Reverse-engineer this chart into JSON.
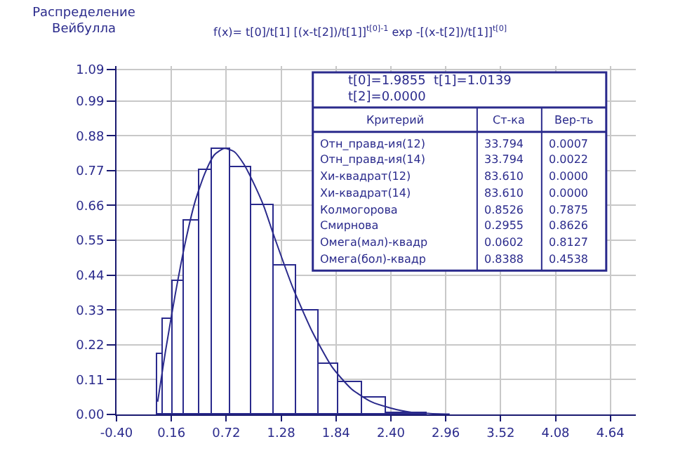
{
  "chart_data": {
    "type": "histogram",
    "title": "Распределение\nВейбулла",
    "bins": [
      0.02,
      0.07,
      0.18,
      0.29,
      0.44,
      0.58,
      0.76,
      0.98,
      1.21,
      1.44,
      1.66,
      1.86,
      2.1,
      2.35,
      2.76
    ],
    "values": [
      0.19,
      0.3,
      0.42,
      0.61,
      0.77,
      0.84,
      0.78,
      0.66,
      0.47,
      0.33,
      0.16,
      0.1,
      0.055,
      0.005
    ],
    "color": "#2a2a8c",
    "series": [
      {
        "type": "line",
        "color": "#2a2a8c",
        "x": [
          0.02,
          0.05,
          0.1,
          0.2,
          0.3,
          0.4,
          0.5,
          0.6,
          0.7,
          0.8,
          0.9,
          1.0,
          1.1,
          1.2,
          1.4,
          1.6,
          1.8,
          2.0,
          2.2,
          2.4,
          2.6,
          2.8,
          3.0
        ],
        "values": [
          0.04,
          0.1,
          0.2,
          0.38,
          0.54,
          0.67,
          0.76,
          0.82,
          0.84,
          0.83,
          0.79,
          0.73,
          0.66,
          0.57,
          0.4,
          0.26,
          0.15,
          0.08,
          0.04,
          0.02,
          0.007,
          0.003,
          0.001
        ]
      }
    ],
    "xlim": [
      -0.4,
      4.9
    ],
    "xticks": [
      {
        "value": -0.4,
        "label": "-0.40"
      },
      0.16,
      0.72,
      1.28,
      1.84,
      {
        "value": 2.4,
        "label": "2.40"
      },
      2.96,
      3.52,
      4.08,
      4.64
    ],
    "ylim": [
      0,
      1.1
    ],
    "yticks": [
      {
        "value": 0,
        "label": "0.00"
      },
      0.11,
      0.22,
      0.33,
      0.44,
      0.55,
      0.66,
      0.77,
      0.88,
      0.99,
      1.09
    ],
    "grid": true,
    "annotations": [
      "f(x)= t[0]/t[1] [(x-t[2])/t[1]]$^{t[0]-1}$ exp -[(x-t[2])/t[1]]$^{t[0]}$",
      "t[0]=1.9855  t[1]=1.0139",
      "t[2]=0.0000",
      "Критерий",
      "Ст-ка",
      "Вер-ть",
      "Отн_правд-ия(12)",
      "33.794",
      "0.0007",
      "Отн_правд-ия(14)",
      "33.794",
      "0.0022",
      "Хи-квадрат(12)",
      "83.610",
      "0.0000",
      "Хи-квадрат(14)",
      "83.610",
      "0.0000",
      "Колмогорова",
      "0.8526",
      "0.7875",
      "Смирнова",
      "0.2955",
      "0.8626",
      "Омега(мал)-квадр",
      "0.0602",
      "0.8127",
      "Омега(бол)-квадр",
      "0.8388",
      "0.4538"
    ]
  }
}
